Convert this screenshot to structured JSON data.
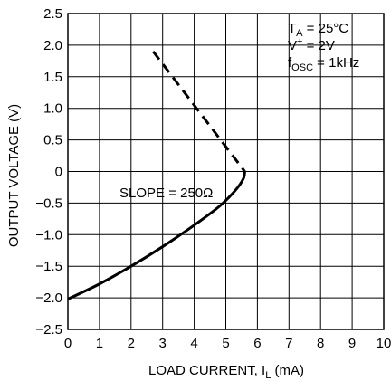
{
  "chart_data": {
    "type": "line",
    "xlabel": "LOAD CURRENT, I",
    "xlabel_sub": "L",
    "xlabel_unit": " (mA)",
    "ylabel": "OUTPUT VOLTAGE (V)",
    "xlim": [
      0,
      10
    ],
    "ylim": [
      -2.5,
      2.5
    ],
    "grid": true,
    "x_ticks": [
      {
        "value": 0,
        "label": "0"
      },
      {
        "value": 1,
        "label": "1"
      },
      {
        "value": 2,
        "label": "2"
      },
      {
        "value": 3,
        "label": "3"
      },
      {
        "value": 4,
        "label": "4"
      },
      {
        "value": 5,
        "label": "5"
      },
      {
        "value": 6,
        "label": "6"
      },
      {
        "value": 7,
        "label": "7"
      },
      {
        "value": 8,
        "label": "8"
      },
      {
        "value": 9,
        "label": "9"
      },
      {
        "value": 10,
        "label": "10"
      }
    ],
    "y_ticks": [
      {
        "value": 2.5,
        "label": "2.5"
      },
      {
        "value": 2.0,
        "label": "2.0"
      },
      {
        "value": 1.5,
        "label": "1.5"
      },
      {
        "value": 1.0,
        "label": "1.0"
      },
      {
        "value": 0.5,
        "label": "0.5"
      },
      {
        "value": 0,
        "label": "0"
      },
      {
        "value": -0.5,
        "label": "−0.5"
      },
      {
        "value": -1.0,
        "label": "−1.0"
      },
      {
        "value": -1.5,
        "label": "−1.5"
      },
      {
        "value": -2.0,
        "label": "−2.0"
      },
      {
        "value": -2.5,
        "label": "−2.5"
      }
    ],
    "series": [
      {
        "style": "solid",
        "points": [
          [
            0,
            -2.02
          ],
          [
            1,
            -1.78
          ],
          [
            2,
            -1.5
          ],
          [
            3,
            -1.19
          ],
          [
            4,
            -0.85
          ],
          [
            4.8,
            -0.55
          ],
          [
            5.3,
            -0.3
          ],
          [
            5.55,
            -0.12
          ],
          [
            5.6,
            0.0
          ]
        ]
      },
      {
        "style": "dashed",
        "points": [
          [
            2.7,
            1.9
          ],
          [
            5.6,
            0.0
          ]
        ]
      }
    ],
    "annotations": {
      "slope": "SLOPE = 250Ω",
      "conditions": [
        {
          "main": "T",
          "sub": "A",
          "sup": "",
          "rest": " = 25°C"
        },
        {
          "main": "V",
          "sub": "",
          "sup": "+",
          "rest": " = 2V"
        },
        {
          "main": "f",
          "sub": "OSC",
          "sup": "",
          "rest": " = 1kHz"
        }
      ]
    },
    "colors": {
      "line": "#000000",
      "grid": "#000000"
    }
  }
}
